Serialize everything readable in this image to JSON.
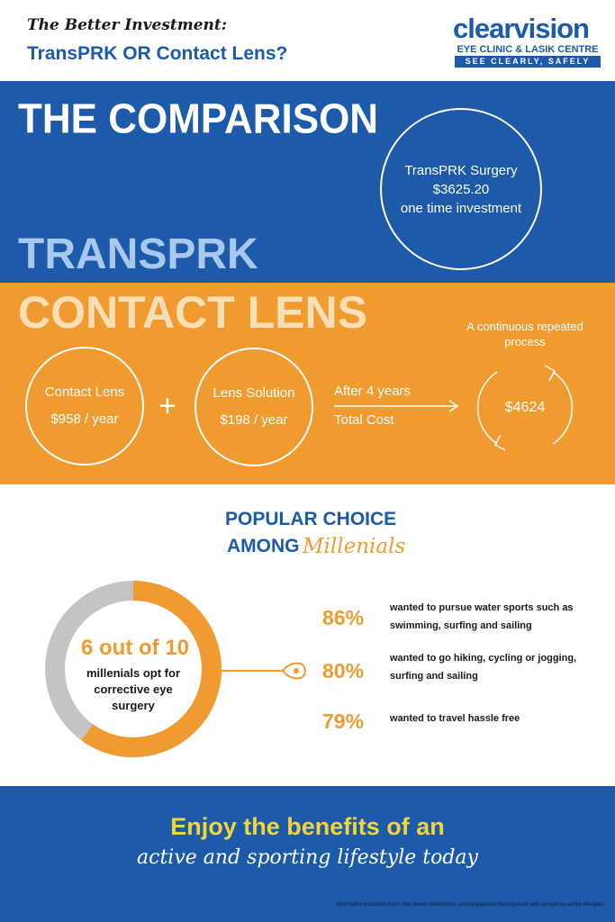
{
  "header": {
    "subtitle": "The Better Investment:",
    "title": "TransPRK OR Contact Lens?",
    "logo": {
      "brand": "clearvision",
      "line1": "EYE CLINIC & LASIK CENTRE",
      "tagline": "SEE CLEARLY, SAFELY"
    }
  },
  "comparison": {
    "title": "THE COMPARISON",
    "transprk_label": "TRANSPRK",
    "transprk_circle": {
      "line1": "TransPRK Surgery",
      "line2": "$3625.20",
      "line3": "one time investment"
    }
  },
  "contact_lens": {
    "title": "CONTACT LENS",
    "lens_circle": {
      "line1": "Contact Lens",
      "line2": "$958 / year"
    },
    "solution_circle": {
      "line1": "Lens Solution",
      "line2": "$198 / year"
    },
    "plus": "+",
    "after_years": "After 4 years",
    "total_cost": "Total Cost",
    "total_value": "$4624",
    "continuous": "A continuous repeated process"
  },
  "popular": {
    "line1": "POPULAR CHOICE",
    "line2": "AMONG",
    "millenials": "Millenials",
    "donut": {
      "big": "6 out of 10",
      "small": "millenials opt for corrective eye surgery",
      "fraction": 0.6
    },
    "stats": [
      {
        "pct": "86%",
        "desc": "wanted to pursue water sports such as swimming, surfing and sailing"
      },
      {
        "pct": "80%",
        "desc": "wanted to go hiking, cycling or jogging, surfing and sailing"
      },
      {
        "pct": "79%",
        "desc": "wanted to travel hassle free"
      }
    ]
  },
  "footer": {
    "line1": "Enjoy the benefits of an",
    "line2": "active and sporting lifestyle today",
    "source": "Information extracted from: http://www.straitstimes.com/singapore/choosing-lasik-with-an-eye-on-active-lifestyles"
  },
  "colors": {
    "blue": "#1d5aa9",
    "orange": "#ef9b2f",
    "light_blue": "#a9c8ee",
    "yellow": "#f2d53c",
    "grey": "#c4c4c4"
  }
}
